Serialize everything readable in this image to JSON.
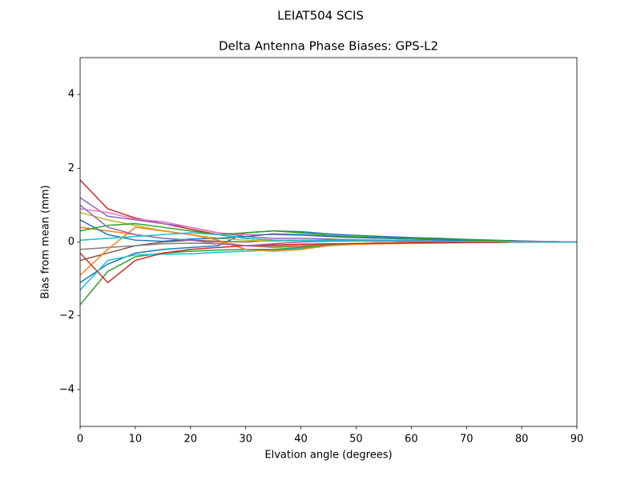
{
  "chart_data": {
    "type": "line",
    "suptitle": "LEIAT504         SCIS",
    "title": "Delta Antenna Phase Biases: GPS-L2",
    "xlabel": "Elvation angle (degrees)",
    "ylabel": "Bias from mean (mm)",
    "x": [
      0,
      5,
      10,
      15,
      20,
      25,
      30,
      35,
      40,
      45,
      50,
      55,
      60,
      65,
      70,
      75,
      80,
      85,
      90
    ],
    "xlim": [
      0,
      90
    ],
    "xticks": [
      0,
      10,
      20,
      30,
      40,
      50,
      60,
      70,
      80,
      90
    ],
    "ylim": [
      -5,
      5
    ],
    "yticks": [
      {
        "value": -4,
        "label": "−4"
      },
      {
        "value": -2,
        "label": "−2"
      },
      0,
      2,
      4
    ],
    "grid": false,
    "series": [
      {
        "color": "#d62728",
        "values": [
          1.68,
          0.9,
          0.65,
          0.5,
          0.35,
          0.2,
          0.1,
          0.05,
          0.05,
          0.05,
          0.03,
          0.02,
          0.02,
          0.01,
          0.01,
          0.01,
          0,
          0,
          0
        ]
      },
      {
        "color": "#1f77b4",
        "values": [
          -1.1,
          -0.6,
          -0.3,
          -0.2,
          -0.15,
          -0.1,
          0.25,
          0.3,
          0.28,
          0.22,
          0.18,
          0.15,
          0.12,
          0.1,
          0.07,
          0.05,
          0.03,
          0.01,
          0
        ]
      },
      {
        "color": "#ff7f0e",
        "values": [
          0.4,
          0.3,
          0.2,
          0.1,
          0.05,
          0,
          -0.1,
          -0.15,
          -0.12,
          -0.08,
          -0.06,
          -0.05,
          -0.04,
          -0.03,
          -0.02,
          -0.01,
          0,
          0,
          0
        ]
      },
      {
        "color": "#2ca02c",
        "values": [
          -1.7,
          -0.8,
          -0.4,
          -0.3,
          -0.25,
          -0.22,
          -0.2,
          -0.2,
          -0.15,
          -0.08,
          -0.05,
          -0.03,
          -0.02,
          -0.01,
          -0.01,
          0,
          0,
          0,
          0
        ]
      },
      {
        "color": "#9467bd",
        "values": [
          1.2,
          0.7,
          0.6,
          0.5,
          0.4,
          0.25,
          0.15,
          0.1,
          0.1,
          0.08,
          0.06,
          0.05,
          0.04,
          0.03,
          0.02,
          0.01,
          0.01,
          0,
          0
        ]
      },
      {
        "color": "#8c564b",
        "values": [
          -0.5,
          -0.3,
          -0.1,
          0,
          0.05,
          0.02,
          0,
          0.05,
          0.05,
          0.04,
          0.03,
          0.02,
          0.02,
          0.01,
          0.01,
          0,
          0,
          0,
          0
        ]
      },
      {
        "color": "#e377c2",
        "values": [
          0.9,
          0.8,
          0.62,
          0.55,
          0.4,
          0.25,
          0.2,
          0.2,
          0.18,
          0.15,
          0.12,
          0.1,
          0.08,
          0.06,
          0.05,
          0.03,
          0.02,
          0.01,
          0
        ]
      },
      {
        "color": "#7f7f7f",
        "values": [
          -0.2,
          -0.15,
          -0.1,
          -0.05,
          -0.03,
          -0.05,
          -0.1,
          -0.12,
          -0.1,
          -0.06,
          -0.04,
          -0.03,
          -0.02,
          -0.02,
          -0.01,
          -0.01,
          0,
          0,
          0
        ]
      },
      {
        "color": "#bcbd22",
        "values": [
          0.8,
          0.6,
          0.45,
          0.3,
          0.2,
          0.1,
          0.05,
          0.02,
          0.03,
          0.03,
          0.03,
          0.02,
          0.02,
          0.01,
          0.01,
          0.01,
          0,
          0,
          0
        ]
      },
      {
        "color": "#17becf",
        "values": [
          -1.3,
          -0.5,
          -0.35,
          -0.33,
          -0.32,
          -0.28,
          -0.25,
          -0.22,
          -0.18,
          -0.1,
          -0.05,
          -0.03,
          -0.02,
          -0.01,
          -0.01,
          0,
          0,
          0,
          0
        ]
      },
      {
        "color": "#1f77b4",
        "values": [
          0.6,
          0.2,
          0.05,
          0.02,
          0.08,
          0.1,
          0.15,
          0.22,
          0.2,
          0.15,
          0.12,
          0.1,
          0.08,
          0.06,
          0.04,
          0.02,
          0.01,
          0,
          0
        ]
      },
      {
        "color": "#ff7f0e",
        "values": [
          -0.9,
          -0.2,
          0.4,
          0.3,
          0.2,
          0.05,
          -0.2,
          -0.25,
          -0.2,
          -0.1,
          -0.06,
          -0.04,
          -0.03,
          -0.02,
          -0.01,
          -0.01,
          0,
          0,
          0
        ]
      },
      {
        "color": "#2ca02c",
        "values": [
          0.3,
          0.45,
          0.5,
          0.4,
          0.3,
          0.2,
          0.25,
          0.3,
          0.25,
          0.18,
          0.14,
          0.12,
          0.1,
          0.08,
          0.06,
          0.04,
          0.02,
          0.01,
          0
        ]
      },
      {
        "color": "#d62728",
        "values": [
          -0.3,
          -1.1,
          -0.5,
          -0.3,
          -0.2,
          -0.15,
          -0.1,
          -0.08,
          -0.06,
          -0.05,
          -0.04,
          -0.03,
          -0.02,
          -0.02,
          -0.01,
          -0.01,
          0,
          0,
          0
        ]
      },
      {
        "color": "#9467bd",
        "values": [
          1.0,
          0.4,
          0.2,
          0.1,
          0.05,
          -0.05,
          -0.1,
          -0.05,
          0,
          0.02,
          0.03,
          0.03,
          0.02,
          0.02,
          0.01,
          0.01,
          0,
          0,
          0
        ]
      },
      {
        "color": "#17becf",
        "values": [
          0.05,
          0.1,
          0.15,
          0.2,
          0.25,
          0.2,
          0.1,
          0.05,
          0.05,
          0.04,
          0.04,
          0.03,
          0.03,
          0.02,
          0.02,
          0.01,
          0.01,
          0,
          0
        ]
      }
    ]
  }
}
